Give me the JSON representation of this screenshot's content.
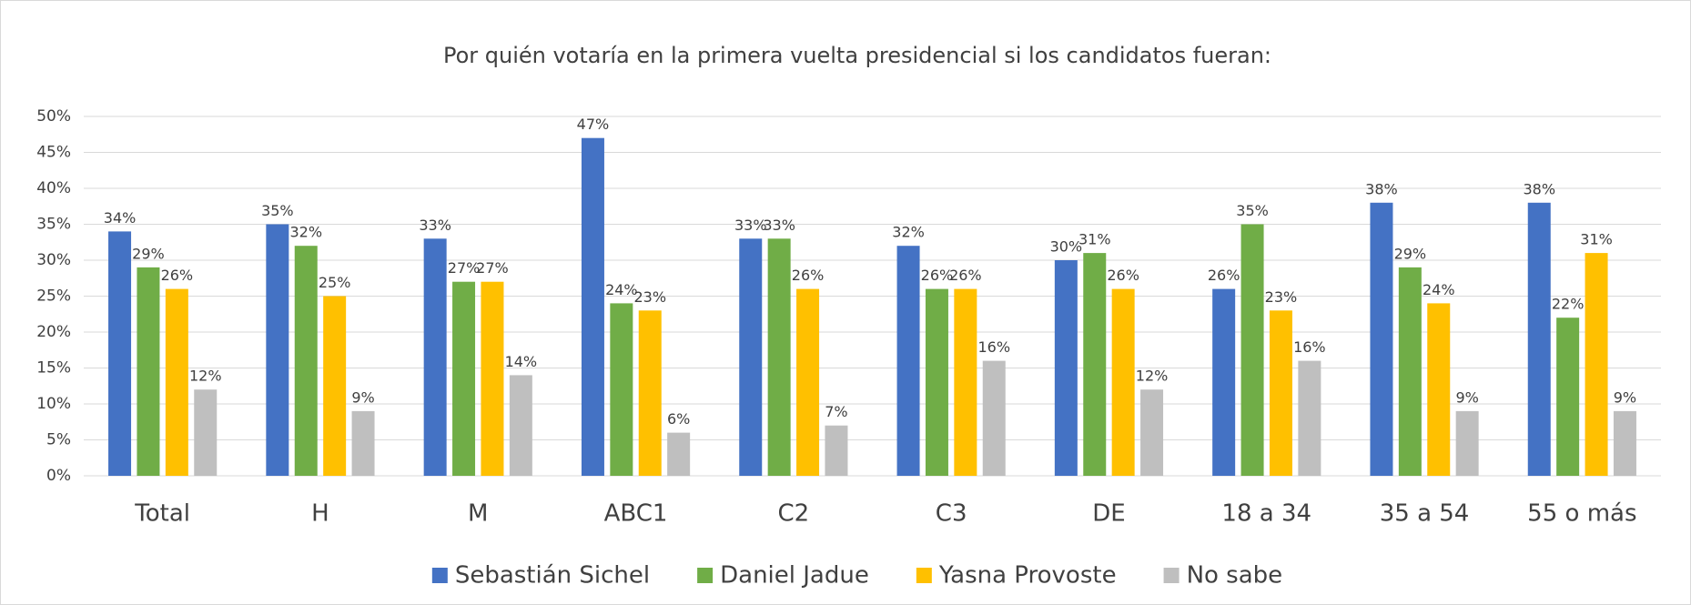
{
  "chart_data": {
    "type": "bar",
    "title": "Por quién votaría en la primera vuelta presidencial si los candidatos fueran:",
    "categories": [
      "Total",
      "H",
      "M",
      "ABC1",
      "C2",
      "C3",
      "DE",
      "18 a 34",
      "35 a 54",
      "55 o más"
    ],
    "series": [
      {
        "name": "Sebastián Sichel",
        "color": "#4472c4",
        "values": [
          34,
          35,
          33,
          47,
          33,
          32,
          30,
          26,
          38,
          38
        ],
        "value_labels": [
          "34%",
          "35%",
          "33%",
          "47%",
          "33%",
          "32%",
          "30%",
          "26%",
          "38%",
          "38%"
        ]
      },
      {
        "name": "Daniel Jadue",
        "color": "#70ad47",
        "values": [
          29,
          32,
          27,
          24,
          33,
          26,
          31,
          35,
          29,
          22
        ],
        "value_labels": [
          "29%",
          "32%",
          "27%",
          "24%",
          "33%",
          "26%",
          "31%",
          "35%",
          "29%",
          "22%"
        ]
      },
      {
        "name": "Yasna Provoste",
        "color": "#ffc000",
        "values": [
          26,
          25,
          27,
          23,
          26,
          26,
          26,
          23,
          24,
          31
        ],
        "value_labels": [
          "26%",
          "25%",
          "27%",
          "23%",
          "26%",
          "26%",
          "26%",
          "23%",
          "24%",
          "31%"
        ]
      },
      {
        "name": "No sabe",
        "color": "#bfbfbf",
        "values": [
          12,
          9,
          14,
          6,
          7,
          16,
          12,
          16,
          9,
          9
        ],
        "value_labels": [
          "12%",
          "9%",
          "14%",
          "6%",
          "7%",
          "16%",
          "12%",
          "16%",
          "9%",
          "9%"
        ]
      }
    ],
    "ylim": [
      0,
      50
    ],
    "yticks": [
      {
        "value": 0,
        "label": "0%"
      },
      {
        "value": 5,
        "label": "5%"
      },
      {
        "value": 10,
        "label": "10%"
      },
      {
        "value": 15,
        "label": "15%"
      },
      {
        "value": 20,
        "label": "20%"
      },
      {
        "value": 25,
        "label": "25%"
      },
      {
        "value": 30,
        "label": "30%"
      },
      {
        "value": 35,
        "label": "35%"
      },
      {
        "value": 40,
        "label": "40%"
      },
      {
        "value": 45,
        "label": "45%"
      },
      {
        "value": 50,
        "label": "50%"
      }
    ],
    "grid": true,
    "legend": "bottom"
  }
}
